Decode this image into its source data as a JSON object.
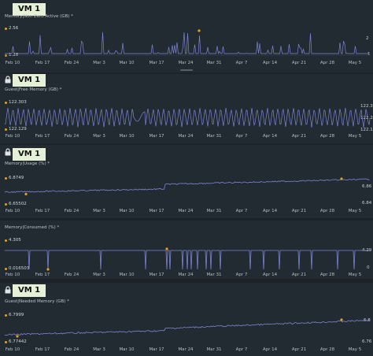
{
  "x_ticks": [
    "Feb 10",
    "Feb 17",
    "Feb 24",
    "Mar 3",
    "Mar 10",
    "Mar 17",
    "Mar 24",
    "Mar 31",
    "Apr 7",
    "Apr 14",
    "Apr 21",
    "Apr 28",
    "May 5"
  ],
  "colors": {
    "line": "#7d85d6",
    "marker": "#e3a21a",
    "tab_bg": "#e6f0d6",
    "panel_bg": "#222b31"
  },
  "vm_label": "VM 1",
  "charts": [
    {
      "title": "Memory|Non Zero Active (GB) *",
      "max_label": "2.56",
      "min_label": "1.28",
      "right_top": "2",
      "right_bottom": "1"
    },
    {
      "title": "Guest|Free Memory (GB) *",
      "max_label": "122.303",
      "min_label": "122.129",
      "right_top": "122.3",
      "right_mid": "122.2",
      "right_bottom": "122.1"
    },
    {
      "title": "Memory|Usage (%) *",
      "max_label": "6.8749",
      "min_label": "6.65502",
      "right_top": "6.86",
      "right_bottom": "6.84"
    },
    {
      "title": "Memory|Consumed (%) *",
      "max_label": "4.305",
      "min_label": "0.016503",
      "right_top": "4.29",
      "right_bottom": "0"
    },
    {
      "title": "Guest|Needed Memory (GB) *",
      "max_label": "6.7999",
      "min_label": "6.77442",
      "right_top": "6.8",
      "right_bottom": "6.76"
    }
  ]
}
